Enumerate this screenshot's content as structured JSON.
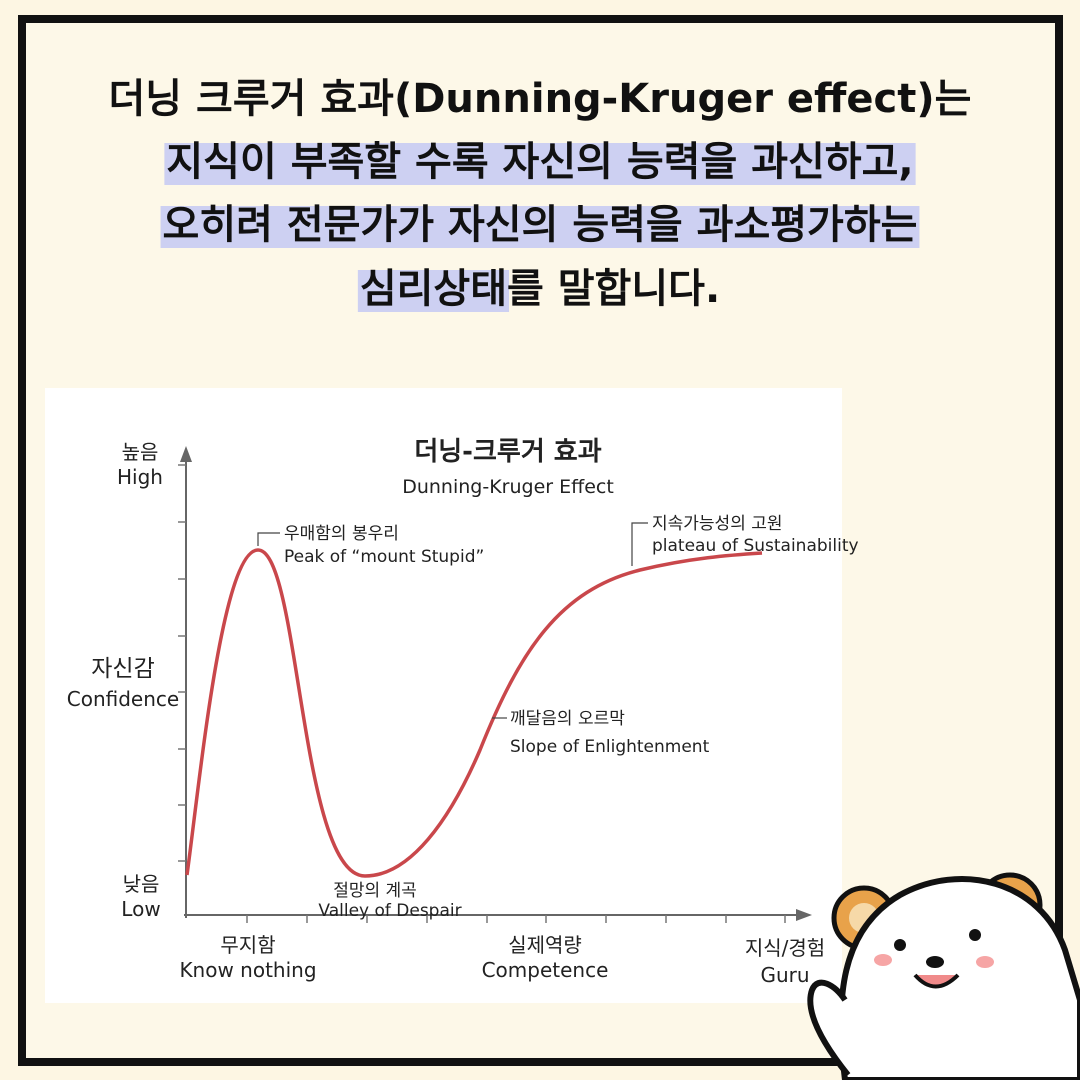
{
  "header": {
    "line1": "더닝 크루거 효과(Dunning-Kruger effect)는",
    "line2": "지식이 부족할 수록 자신의 능력을 과신하고,",
    "line3": "오히려 전문가가 자신의 능력을 과소평가하는",
    "line4_highlight": "심리상태",
    "line4_rest": "를 말합니다."
  },
  "diagram": {
    "title": "더닝-크루거 효과",
    "subtitle": "Dunning-Kruger Effect",
    "y_axis": {
      "high_ko": "높음",
      "high_en": "High",
      "label_ko": "자신감",
      "label_en": "Confidence",
      "low_ko": "낮음",
      "low_en": "Low"
    },
    "x_axis": {
      "start_ko": "무지함",
      "start_en": "Know nothing",
      "mid_ko": "실제역량",
      "mid_en": "Competence",
      "end_ko": "지식/경험",
      "end_en": "Guru"
    },
    "stages": [
      {
        "ko": "우매함의 봉우리",
        "en": "Peak of “mount Stupid”"
      },
      {
        "ko": "절망의 계곡",
        "en": "Valley of Despair"
      },
      {
        "ko": "깨달음의 오르막",
        "en": "Slope of Enlightenment"
      },
      {
        "ko": "지속가능성의 고원",
        "en": "plateau of Sustainability"
      }
    ]
  }
}
